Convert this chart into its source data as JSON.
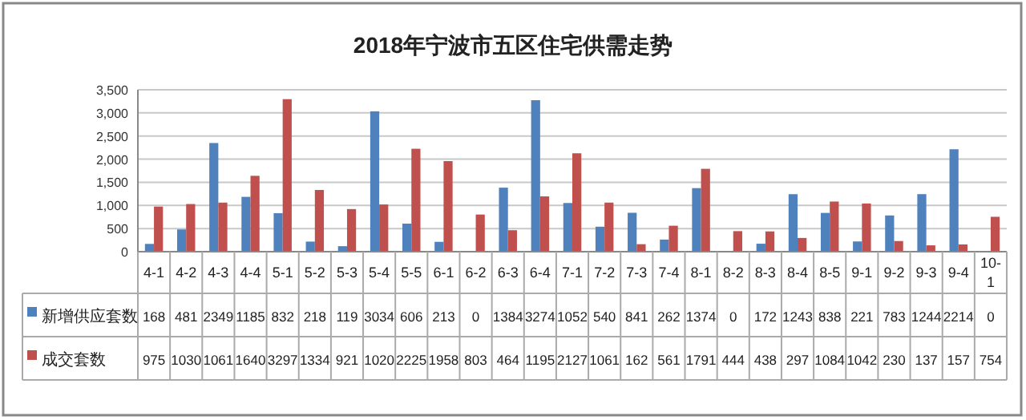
{
  "chart_data": {
    "type": "bar",
    "title": "2018年宁波市五区住宅供需走势",
    "categories": [
      "4-1",
      "4-2",
      "4-3",
      "4-4",
      "5-1",
      "5-2",
      "5-3",
      "5-4",
      "5-5",
      "6-1",
      "6-2",
      "6-3",
      "6-4",
      "7-1",
      "7-2",
      "7-3",
      "7-4",
      "8-1",
      "8-2",
      "8-3",
      "8-4",
      "8-5",
      "9-1",
      "9-2",
      "9-3",
      "9-4",
      "10-1"
    ],
    "series": [
      {
        "name": "新增供应套数",
        "color": "#4f81bd",
        "values": [
          168,
          481,
          2349,
          1185,
          832,
          218,
          119,
          3034,
          606,
          213,
          0,
          1384,
          3274,
          1052,
          540,
          841,
          262,
          1374,
          0,
          172,
          1243,
          838,
          221,
          783,
          1244,
          2214,
          0
        ]
      },
      {
        "name": "成交套数",
        "color": "#c0504d",
        "values": [
          975,
          1030,
          1061,
          1640,
          3297,
          1334,
          921,
          1020,
          2225,
          1958,
          803,
          464,
          1195,
          2127,
          1061,
          162,
          561,
          1791,
          444,
          438,
          297,
          1084,
          1042,
          230,
          137,
          157,
          754
        ]
      }
    ],
    "ylim": [
      0,
      3500
    ],
    "yticks": [
      {
        "value": 0,
        "label": "0"
      },
      {
        "value": 500,
        "label": "500"
      },
      {
        "value": 1000,
        "label": "1,000"
      },
      {
        "value": 1500,
        "label": "1,500"
      },
      {
        "value": 2000,
        "label": "2,000"
      },
      {
        "value": 2500,
        "label": "2,500"
      },
      {
        "value": 3000,
        "label": "3,000"
      },
      {
        "value": 3500,
        "label": "3,500"
      }
    ],
    "grid": "y",
    "legend": "bottom",
    "data_labels": true
  }
}
